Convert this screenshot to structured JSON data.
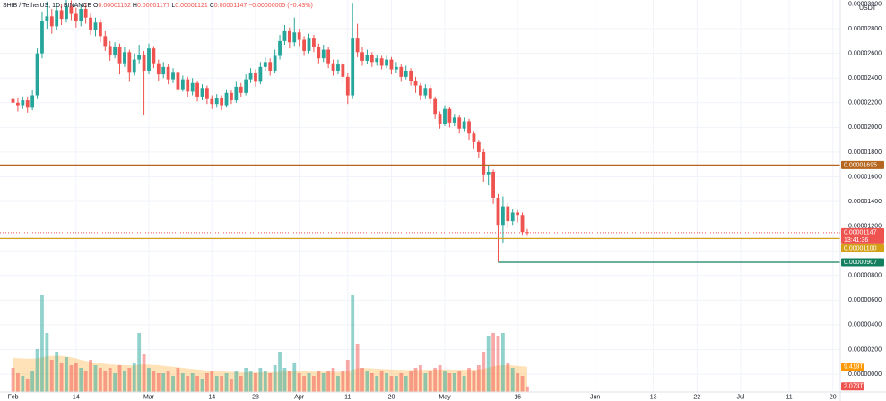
{
  "chart_data": {
    "type": "candlestick",
    "title": "SHIB / TetherUS, 1D, BINANCE",
    "ohlc_legend": [
      {
        "key": "O",
        "value": "0.00001152"
      },
      {
        "key": "H",
        "value": "0.00001177"
      },
      {
        "key": "L",
        "value": "0.00001121"
      },
      {
        "key": "C",
        "value": "0.00001147"
      }
    ],
    "change": "−0.00000005 (−0.43%)",
    "currency": "USDT",
    "x": [
      0,
      1,
      2,
      3,
      4,
      5,
      6,
      7,
      8,
      9,
      10,
      11,
      12,
      13,
      14,
      15,
      16,
      17,
      18,
      19,
      20,
      21,
      22,
      23,
      24,
      25,
      26,
      27,
      28,
      29,
      30,
      31,
      32,
      33,
      34,
      35,
      36,
      37,
      38,
      39,
      40,
      41,
      42,
      43,
      44,
      45,
      46,
      47,
      48,
      49,
      50,
      51,
      52,
      53,
      54,
      55,
      56,
      57,
      58,
      59,
      60,
      61,
      62,
      63,
      64,
      65,
      66,
      67,
      68,
      69,
      70,
      71,
      72,
      73,
      74,
      75,
      76,
      77,
      78,
      79,
      80,
      81,
      82,
      83,
      84,
      85,
      86,
      87,
      88,
      89,
      90,
      91,
      92,
      93,
      94,
      95,
      96,
      97,
      98,
      99,
      100,
      101,
      102,
      103,
      104,
      105,
      106
    ],
    "open": [
      2.23e-05,
      2.2e-05,
      2.18e-05,
      2.22e-05,
      2.16e-05,
      2.26e-05,
      2.6e-05,
      2.86e-05,
      2.9e-05,
      2.82e-05,
      2.95e-05,
      2.88e-05,
      2.98e-05,
      2.92e-05,
      2.86e-05,
      2.96e-05,
      2.89e-05,
      2.79e-05,
      2.85e-05,
      2.74e-05,
      2.66e-05,
      2.59e-05,
      2.65e-05,
      2.52e-05,
      2.61e-05,
      2.45e-05,
      2.55e-05,
      2.59e-05,
      2.46e-05,
      2.64e-05,
      2.52e-05,
      2.43e-05,
      2.49e-05,
      2.39e-05,
      2.45e-05,
      2.31e-05,
      2.39e-05,
      2.29e-05,
      2.36e-05,
      2.25e-05,
      2.32e-05,
      2.23e-05,
      2.19e-05,
      2.24e-05,
      2.18e-05,
      2.28e-05,
      2.22e-05,
      2.33e-05,
      2.28e-05,
      2.39e-05,
      2.44e-05,
      2.37e-05,
      2.49e-05,
      2.53e-05,
      2.46e-05,
      2.58e-05,
      2.7e-05,
      2.78e-05,
      2.69e-05,
      2.77e-05,
      2.71e-05,
      2.62e-05,
      2.72e-05,
      2.65e-05,
      2.56e-05,
      2.63e-05,
      2.52e-05,
      2.46e-05,
      2.51e-05,
      2.41e-05,
      2.26e-05,
      2.72e-05,
      2.61e-05,
      2.54e-05,
      2.59e-05,
      2.53e-05,
      2.56e-05,
      2.5e-05,
      2.55e-05,
      2.47e-05,
      2.49e-05,
      2.41e-05,
      2.46e-05,
      2.38e-05,
      2.34e-05,
      2.26e-05,
      2.32e-05,
      2.23e-05,
      2.11e-05,
      2.03e-05,
      2.15e-05,
      2.04e-05,
      2.08e-05,
      1.99e-05,
      2.05e-05,
      1.95e-05,
      1.88e-05,
      1.8e-05,
      1.62e-05,
      1.64e-05,
      1.43e-05,
      1.21e-05,
      1.36e-05,
      1.24e-05,
      1.31e-05,
      1.29e-05,
      1.152e-05
    ],
    "high": [
      2.26e-05,
      2.24e-05,
      2.25e-05,
      2.25e-05,
      2.3e-05,
      2.64e-05,
      2.94e-05,
      3.02e-05,
      2.96e-05,
      3.01e-05,
      3e-05,
      3.06e-05,
      3.03e-05,
      2.97e-05,
      3e-05,
      3e-05,
      2.93e-05,
      2.89e-05,
      2.88e-05,
      2.78e-05,
      2.7e-05,
      2.69e-05,
      2.68e-05,
      2.65e-05,
      2.63e-05,
      2.6e-05,
      2.67e-05,
      2.62e-05,
      2.68e-05,
      2.66e-05,
      2.55e-05,
      2.53e-05,
      2.51e-05,
      2.48e-05,
      2.47e-05,
      2.42e-05,
      2.41e-05,
      2.4e-05,
      2.38e-05,
      2.35e-05,
      2.34e-05,
      2.26e-05,
      2.27e-05,
      2.26e-05,
      2.31e-05,
      2.3e-05,
      2.37e-05,
      2.36e-05,
      2.43e-05,
      2.48e-05,
      2.47e-05,
      2.53e-05,
      2.57e-05,
      2.56e-05,
      2.63e-05,
      2.75e-05,
      2.83e-05,
      2.81e-05,
      2.89e-05,
      2.8e-05,
      2.74e-05,
      2.76e-05,
      2.75e-05,
      2.68e-05,
      2.67e-05,
      2.65e-05,
      2.55e-05,
      2.55e-05,
      2.53e-05,
      2.44e-05,
      3.01e-05,
      2.84e-05,
      2.65e-05,
      2.63e-05,
      2.61e-05,
      2.59e-05,
      2.58e-05,
      2.58e-05,
      2.57e-05,
      2.53e-05,
      2.51e-05,
      2.5e-05,
      2.48e-05,
      2.41e-05,
      2.36e-05,
      2.35e-05,
      2.34e-05,
      2.25e-05,
      2.13e-05,
      2.18e-05,
      2.17e-05,
      2.11e-05,
      2.1e-05,
      2.08e-05,
      2.07e-05,
      1.97e-05,
      1.9e-05,
      1.83e-05,
      1.69e-05,
      1.66e-05,
      1.46e-05,
      1.44e-05,
      1.39e-05,
      1.34e-05,
      1.33e-05,
      1.31e-05,
      1.177e-05
    ],
    "low": [
      2.16e-05,
      2.13e-05,
      2.15e-05,
      2.12e-05,
      2.14e-05,
      2.23e-05,
      2.56e-05,
      2.8e-05,
      2.76e-05,
      2.79e-05,
      2.83e-05,
      2.85e-05,
      2.87e-05,
      2.81e-05,
      2.82e-05,
      2.84e-05,
      2.75e-05,
      2.74e-05,
      2.69e-05,
      2.62e-05,
      2.54e-05,
      2.56e-05,
      2.43e-05,
      2.49e-05,
      2.37e-05,
      2.42e-05,
      2.52e-05,
      2.1e-05,
      2.43e-05,
      2.48e-05,
      2.38e-05,
      2.4e-05,
      2.35e-05,
      2.36e-05,
      2.28e-05,
      2.29e-05,
      2.25e-05,
      2.26e-05,
      2.21e-05,
      2.22e-05,
      2.19e-05,
      2.15e-05,
      2.16e-05,
      2.14e-05,
      2.16e-05,
      2.19e-05,
      2.2e-05,
      2.25e-05,
      2.26e-05,
      2.36e-05,
      2.33e-05,
      2.35e-05,
      2.46e-05,
      2.42e-05,
      2.44e-05,
      2.55e-05,
      2.67e-05,
      2.64e-05,
      2.66e-05,
      2.66e-05,
      2.58e-05,
      2.6e-05,
      2.61e-05,
      2.52e-05,
      2.53e-05,
      2.48e-05,
      2.42e-05,
      2.43e-05,
      2.36e-05,
      2.19e-05,
      2.23e-05,
      2.57e-05,
      2.5e-05,
      2.51e-05,
      2.49e-05,
      2.5e-05,
      2.47e-05,
      2.48e-05,
      2.43e-05,
      2.44e-05,
      2.37e-05,
      2.39e-05,
      2.34e-05,
      2.28e-05,
      2.22e-05,
      2.23e-05,
      2.19e-05,
      2.07e-05,
      1.99e-05,
      2.01e-05,
      2e-05,
      2.01e-05,
      1.95e-05,
      1.97e-05,
      1.9e-05,
      1.83e-05,
      1.75e-05,
      1.56e-05,
      1.53e-05,
      1.38e-05,
      9.07e-06,
      1.06e-05,
      1.18e-05,
      1.21e-05,
      1.23e-05,
      1.13e-05,
      1.121e-05
    ],
    "close": [
      2.2e-05,
      2.18e-05,
      2.22e-05,
      2.16e-05,
      2.26e-05,
      2.6e-05,
      2.86e-05,
      2.9e-05,
      2.82e-05,
      2.95e-05,
      2.88e-05,
      2.98e-05,
      2.92e-05,
      2.86e-05,
      2.96e-05,
      2.89e-05,
      2.79e-05,
      2.85e-05,
      2.74e-05,
      2.66e-05,
      2.59e-05,
      2.65e-05,
      2.52e-05,
      2.61e-05,
      2.45e-05,
      2.55e-05,
      2.59e-05,
      2.46e-05,
      2.64e-05,
      2.52e-05,
      2.43e-05,
      2.49e-05,
      2.39e-05,
      2.45e-05,
      2.31e-05,
      2.39e-05,
      2.29e-05,
      2.36e-05,
      2.25e-05,
      2.32e-05,
      2.23e-05,
      2.19e-05,
      2.24e-05,
      2.18e-05,
      2.28e-05,
      2.22e-05,
      2.33e-05,
      2.28e-05,
      2.39e-05,
      2.44e-05,
      2.37e-05,
      2.49e-05,
      2.53e-05,
      2.46e-05,
      2.58e-05,
      2.7e-05,
      2.78e-05,
      2.69e-05,
      2.77e-05,
      2.71e-05,
      2.62e-05,
      2.72e-05,
      2.65e-05,
      2.56e-05,
      2.63e-05,
      2.52e-05,
      2.46e-05,
      2.51e-05,
      2.41e-05,
      2.26e-05,
      2.72e-05,
      2.61e-05,
      2.54e-05,
      2.59e-05,
      2.53e-05,
      2.56e-05,
      2.5e-05,
      2.55e-05,
      2.47e-05,
      2.49e-05,
      2.41e-05,
      2.46e-05,
      2.38e-05,
      2.34e-05,
      2.26e-05,
      2.32e-05,
      2.23e-05,
      2.11e-05,
      2.03e-05,
      2.15e-05,
      2.04e-05,
      2.08e-05,
      1.99e-05,
      2.05e-05,
      1.95e-05,
      1.88e-05,
      1.8e-05,
      1.62e-05,
      1.64e-05,
      1.43e-05,
      1.21e-05,
      1.36e-05,
      1.24e-05,
      1.31e-05,
      1.29e-05,
      1.152e-05,
      1.147e-05
    ],
    "volume": [
      9,
      7,
      6,
      5,
      8,
      16,
      36,
      22,
      12,
      15,
      11,
      13,
      10,
      11,
      9,
      8,
      12,
      10,
      9,
      8,
      9,
      7,
      10,
      8,
      9,
      11,
      22,
      14,
      9,
      8,
      7,
      7,
      8,
      6,
      9,
      7,
      6,
      7,
      6,
      5,
      7,
      8,
      6,
      6,
      7,
      5,
      8,
      6,
      9,
      8,
      7,
      9,
      8,
      7,
      10,
      15,
      9,
      8,
      11,
      7,
      6,
      7,
      6,
      8,
      7,
      8,
      9,
      6,
      8,
      12,
      36,
      18,
      9,
      8,
      7,
      6,
      8,
      7,
      6,
      6,
      7,
      6,
      8,
      9,
      10,
      7,
      8,
      9,
      10,
      8,
      7,
      7,
      8,
      6,
      9,
      8,
      10,
      15,
      21,
      22,
      21,
      22,
      11,
      9,
      7,
      6,
      2.073
    ],
    "volume_label": "2.073T",
    "volume_ma": [
      12.7,
      12.6,
      12.5,
      12.4,
      12.4,
      12.5,
      12.9,
      13.3,
      13.4,
      13.5,
      13.4,
      13.2,
      12.9,
      12.5,
      12.0,
      11.6,
      11.2,
      10.9,
      10.7,
      10.5,
      10.3,
      10.2,
      10.1,
      10.0,
      9.9,
      9.9,
      10.2,
      10.3,
      10.2,
      10.1,
      10.0,
      9.8,
      9.6,
      9.4,
      9.2,
      9.0,
      8.8,
      8.6,
      8.4,
      8.2,
      8.0,
      7.9,
      7.8,
      7.7,
      7.6,
      7.5,
      7.4,
      7.4,
      7.3,
      7.3,
      7.3,
      7.3,
      7.4,
      7.4,
      7.4,
      7.6,
      7.7,
      7.7,
      7.8,
      7.8,
      7.7,
      7.7,
      7.6,
      7.6,
      7.6,
      7.6,
      7.6,
      7.5,
      7.6,
      7.7,
      8.4,
      8.8,
      8.9,
      8.9,
      8.8,
      8.7,
      8.6,
      8.5,
      8.4,
      8.3,
      8.3,
      8.2,
      8.2,
      8.2,
      8.2,
      8.3,
      8.3,
      8.3,
      8.4,
      8.4,
      8.4,
      8.3,
      8.3,
      8.3,
      8.3,
      8.3,
      8.4,
      8.7,
      9.1,
      9.5,
      9.9,
      10.0,
      10.0,
      9.9,
      9.7,
      9.6,
      9.419
    ],
    "volume_ma_label": "9.419T",
    "colors": {
      "up": "#26a69a",
      "down": "#ef5350",
      "volume_ma": "#ff9800"
    },
    "xlim": [
      -2.68,
      170.52
    ],
    "xticks": [
      {
        "value": 0,
        "label": "Feb"
      },
      {
        "value": 13,
        "label": "14"
      },
      {
        "value": 28,
        "label": "Mar"
      },
      {
        "value": 41,
        "label": "14"
      },
      {
        "value": 50,
        "label": "23"
      },
      {
        "value": 59,
        "label": "Apr"
      },
      {
        "value": 69,
        "label": "11"
      },
      {
        "value": 78,
        "label": "20"
      },
      {
        "value": 89,
        "label": "May"
      },
      {
        "value": 104,
        "label": "16"
      },
      {
        "value": 120,
        "label": "Jun"
      },
      {
        "value": 132,
        "label": "13"
      },
      {
        "value": 141,
        "label": "22"
      },
      {
        "value": 150,
        "label": "Jul"
      },
      {
        "value": 160,
        "label": "11"
      },
      {
        "value": 169,
        "label": "20"
      }
    ],
    "ylim": [
      -1.45e-06,
      3.033e-05
    ],
    "yticks": [
      {
        "value": 0,
        "label": "0.00000000"
      },
      {
        "value": 2e-06,
        "label": "0.00000200"
      },
      {
        "value": 4e-06,
        "label": "0.00000400"
      },
      {
        "value": 6e-06,
        "label": "0.00000600"
      },
      {
        "value": 8e-06,
        "label": "0.00000800"
      },
      {
        "value": 1e-05,
        "label": "0.00001000"
      },
      {
        "value": 1.2e-05,
        "label": "0.00001200"
      },
      {
        "value": 1.4e-05,
        "label": "0.00001400"
      },
      {
        "value": 1.6e-05,
        "label": "0.00001600"
      },
      {
        "value": 1.8e-05,
        "label": "0.00001800"
      },
      {
        "value": 2e-05,
        "label": "0.00002000"
      },
      {
        "value": 2.2e-05,
        "label": "0.00002200"
      },
      {
        "value": 2.4e-05,
        "label": "0.00002400"
      },
      {
        "value": 2.6e-05,
        "label": "0.00002600"
      },
      {
        "value": 2.8e-05,
        "label": "0.00002800"
      },
      {
        "value": 3e-05,
        "label": "0.00003000"
      }
    ],
    "grid": true,
    "levels": [
      {
        "value": 1.695e-05,
        "label": "0.00001695",
        "color": "#b5651d"
      },
      {
        "value": 1.1e-05,
        "label": "0.00001100",
        "color": "#d4a017"
      },
      {
        "value": 9.07e-06,
        "label": "0.00000907",
        "color": "#137f5e",
        "from_x": 100
      }
    ],
    "last_price": {
      "value": 1.147e-05,
      "label": "0.00001147",
      "countdown": "13:41:36",
      "color": "#ef5350"
    }
  }
}
